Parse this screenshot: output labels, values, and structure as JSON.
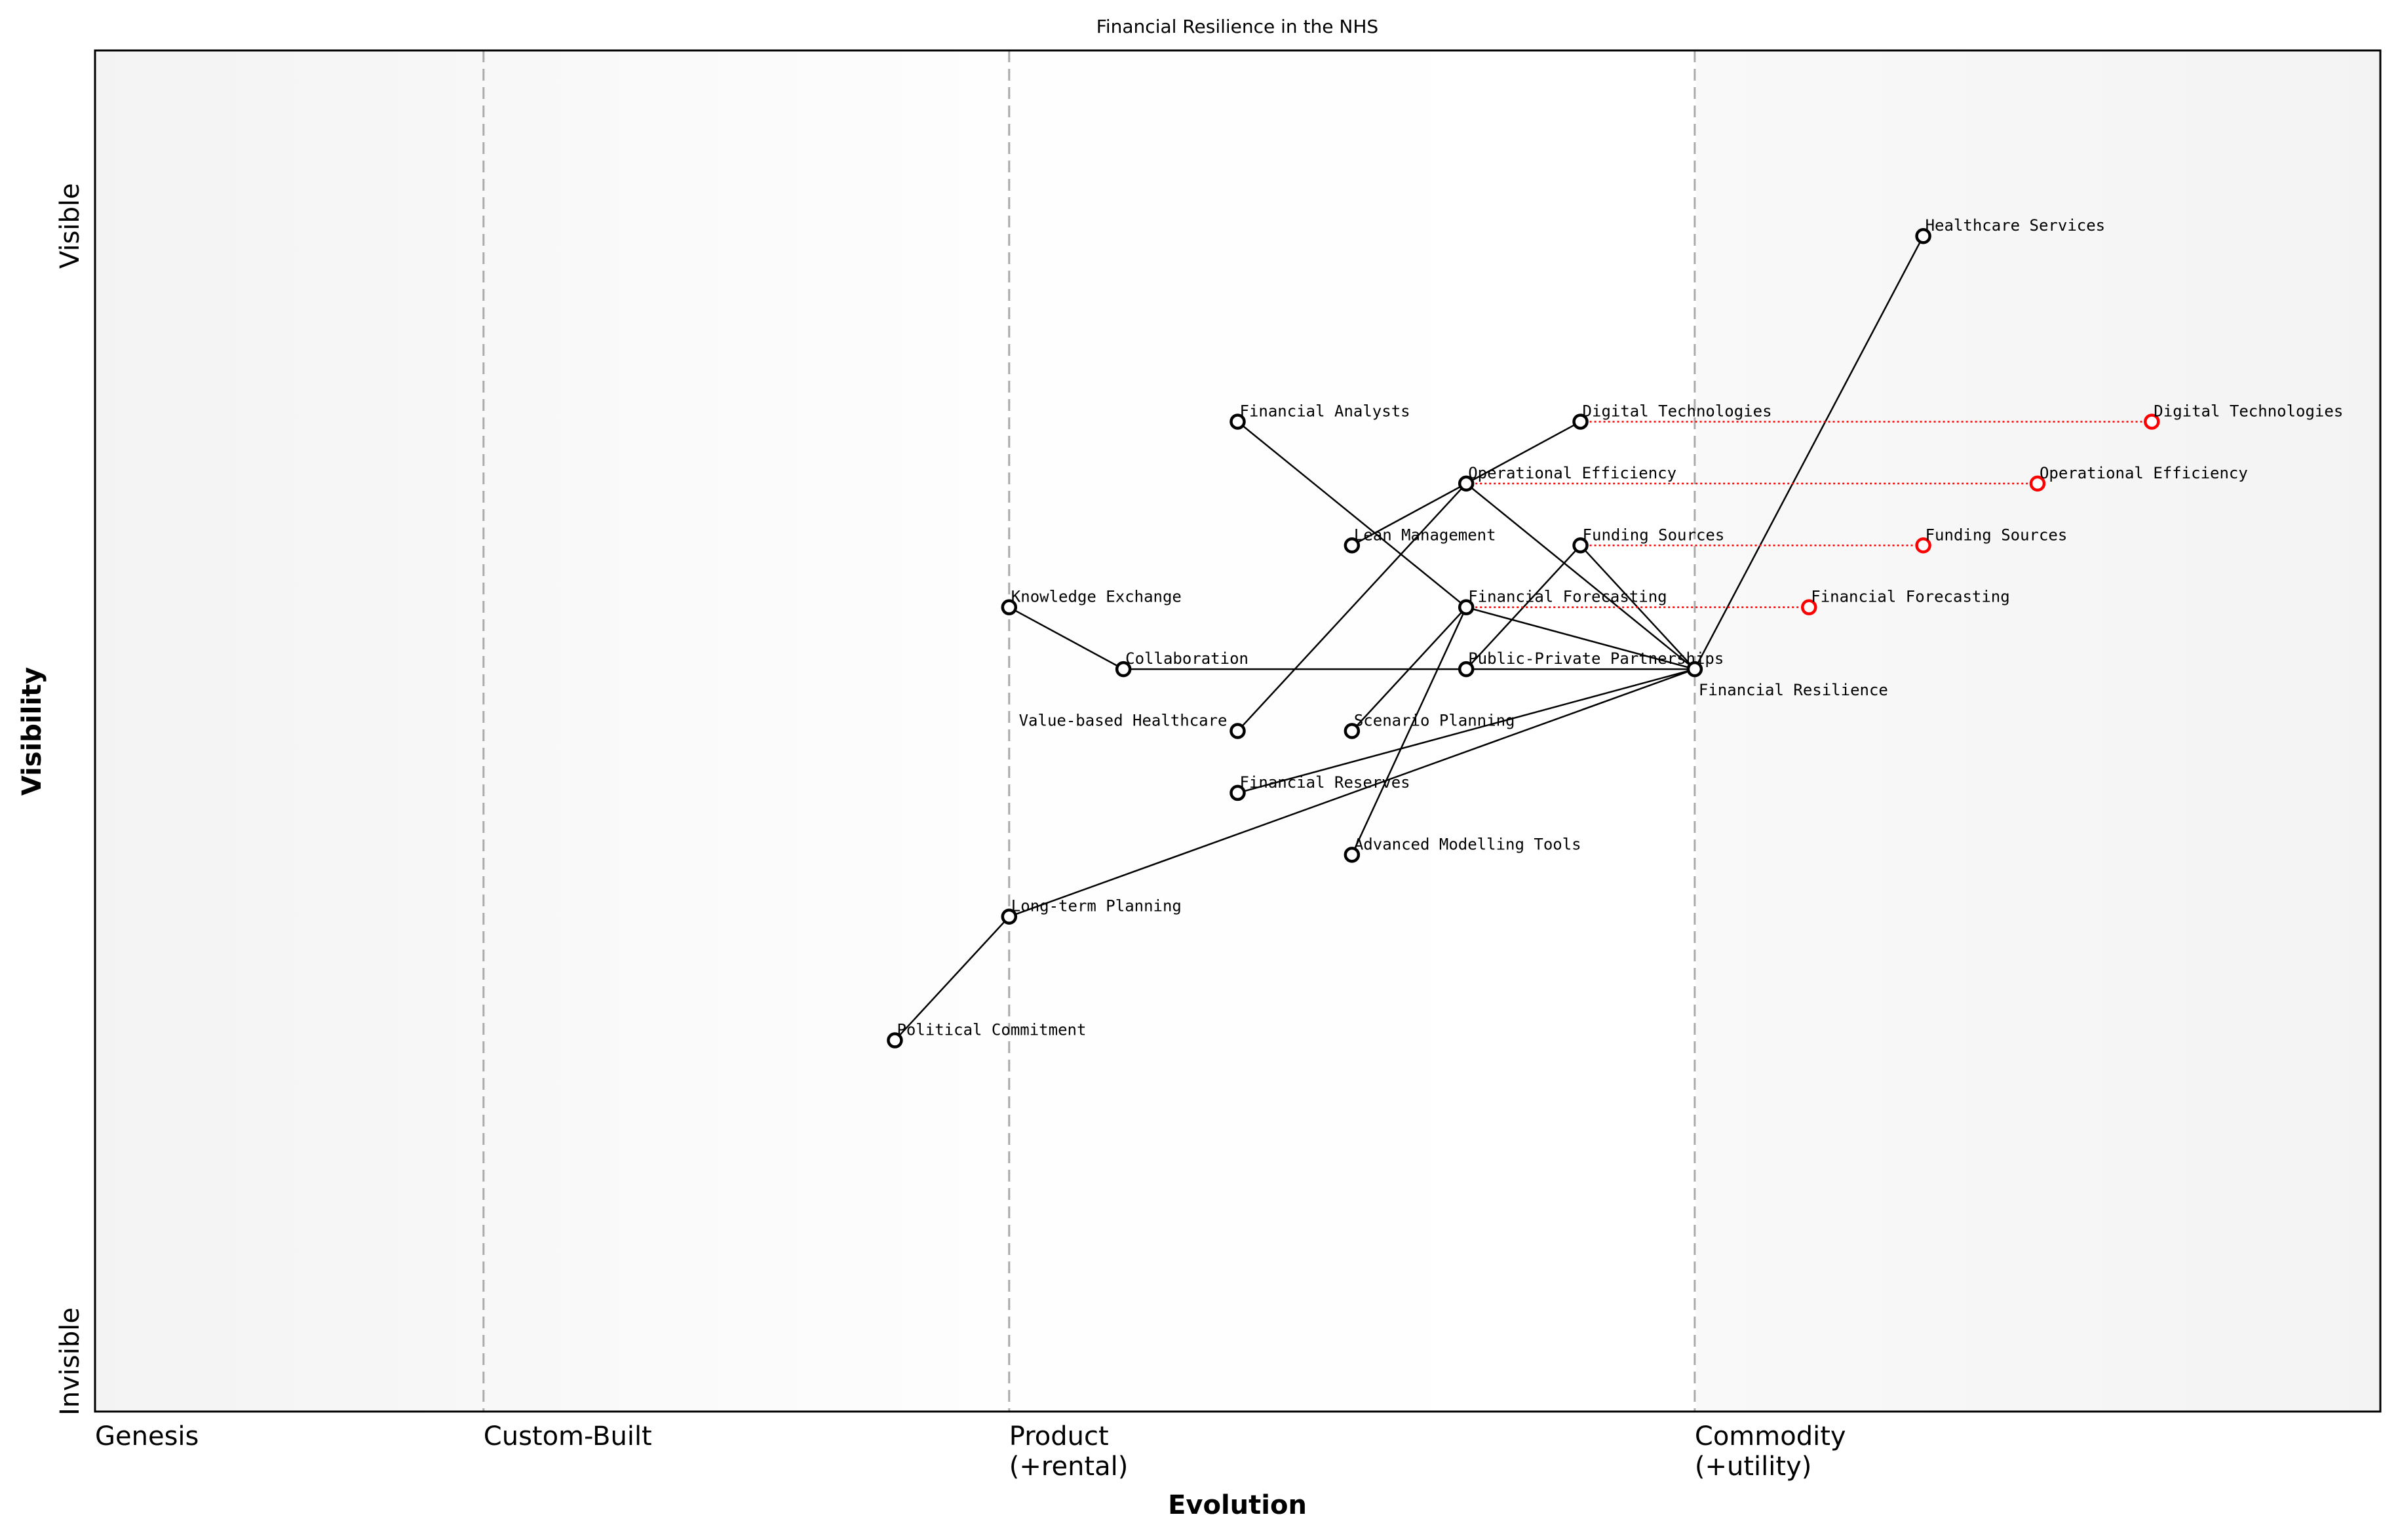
{
  "chart_data": {
    "type": "scatter",
    "subtype": "wardley-map",
    "title": "Financial Resilience in the NHS",
    "xlabel": "Evolution",
    "ylabel": "Visibility",
    "xlim": [
      0,
      1
    ],
    "ylim": [
      0,
      1.1
    ],
    "grid": false,
    "y_end_labels": {
      "top": "Visible",
      "bottom": "Invisible"
    },
    "stages": [
      {
        "label": "Genesis",
        "x": 0.0
      },
      {
        "label": "Custom-Built",
        "x": 0.17
      },
      {
        "label": "Product\n(+rental)",
        "x": 0.4
      },
      {
        "label": "Commodity\n(+utility)",
        "x": 0.7
      }
    ],
    "colors": {
      "node": "#000000",
      "evolve": "#ff0000",
      "stage_line": "#aaaaaa"
    },
    "components": [
      {
        "name": "Healthcare Services",
        "evolution": 0.8,
        "visibility": 0.95
      },
      {
        "name": "Financial Analysts",
        "evolution": 0.5,
        "visibility": 0.8
      },
      {
        "name": "Digital Technologies",
        "evolution": 0.65,
        "visibility": 0.8
      },
      {
        "name": "Operational Efficiency",
        "evolution": 0.6,
        "visibility": 0.75
      },
      {
        "name": "Lean Management",
        "evolution": 0.55,
        "visibility": 0.7
      },
      {
        "name": "Funding Sources",
        "evolution": 0.65,
        "visibility": 0.7
      },
      {
        "name": "Knowledge Exchange",
        "evolution": 0.4,
        "visibility": 0.65
      },
      {
        "name": "Financial Forecasting",
        "evolution": 0.6,
        "visibility": 0.65
      },
      {
        "name": "Collaboration",
        "evolution": 0.45,
        "visibility": 0.6
      },
      {
        "name": "Public-Private Partnerships",
        "evolution": 0.6,
        "visibility": 0.6
      },
      {
        "name": "Financial Resilience",
        "evolution": 0.7,
        "visibility": 0.6
      },
      {
        "name": "Value-based Healthcare",
        "evolution": 0.5,
        "visibility": 0.55
      },
      {
        "name": "Scenario Planning",
        "evolution": 0.55,
        "visibility": 0.55
      },
      {
        "name": "Financial Reserves",
        "evolution": 0.5,
        "visibility": 0.5
      },
      {
        "name": "Advanced Modelling Tools",
        "evolution": 0.55,
        "visibility": 0.45
      },
      {
        "name": "Long-term Planning",
        "evolution": 0.4,
        "visibility": 0.4
      },
      {
        "name": "Political Commitment",
        "evolution": 0.35,
        "visibility": 0.3
      }
    ],
    "evolutions": [
      {
        "name": "Digital Technologies",
        "from": 0.65,
        "to": 0.9,
        "visibility": 0.8
      },
      {
        "name": "Operational Efficiency",
        "from": 0.6,
        "to": 0.85,
        "visibility": 0.75
      },
      {
        "name": "Funding Sources",
        "from": 0.65,
        "to": 0.8,
        "visibility": 0.7
      },
      {
        "name": "Financial Forecasting",
        "from": 0.6,
        "to": 0.75,
        "visibility": 0.65
      }
    ],
    "links": [
      [
        "Financial Analysts",
        "Financial Forecasting"
      ],
      [
        "Digital Technologies",
        "Operational Efficiency"
      ],
      [
        "Operational Efficiency",
        "Lean Management"
      ],
      [
        "Operational Efficiency",
        "Value-based Healthcare"
      ],
      [
        "Operational Efficiency",
        "Financial Resilience"
      ],
      [
        "Funding Sources",
        "Financial Resilience"
      ],
      [
        "Funding Sources",
        "Public-Private Partnerships"
      ],
      [
        "Financial Forecasting",
        "Financial Resilience"
      ],
      [
        "Financial Forecasting",
        "Scenario Planning"
      ],
      [
        "Financial Forecasting",
        "Advanced Modelling Tools"
      ],
      [
        "Knowledge Exchange",
        "Collaboration"
      ],
      [
        "Collaboration",
        "Financial Resilience"
      ],
      [
        "Healthcare Services",
        "Financial Resilience"
      ],
      [
        "Financial Resilience",
        "Financial Reserves"
      ],
      [
        "Financial Resilience",
        "Long-term Planning"
      ],
      [
        "Long-term Planning",
        "Political Commitment"
      ]
    ]
  }
}
